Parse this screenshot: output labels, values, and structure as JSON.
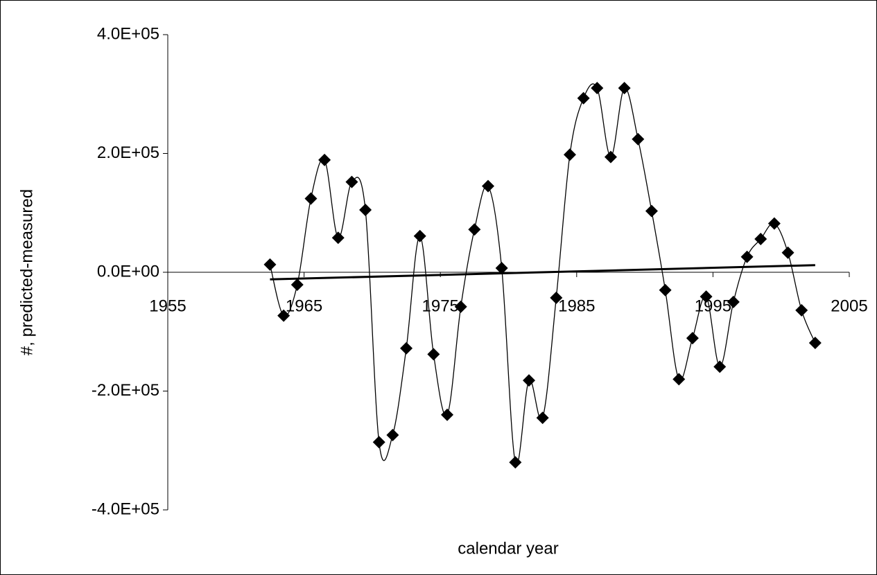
{
  "chart_data": {
    "type": "scatter-smooth",
    "x_label": "calendar year",
    "y_label": "#, predicted-measured",
    "x": [
      1962.5,
      1963.5,
      1964.5,
      1965.5,
      1966.5,
      1967.5,
      1968.5,
      1969.5,
      1970.5,
      1971.5,
      1972.5,
      1973.5,
      1974.5,
      1975.5,
      1976.5,
      1977.5,
      1978.5,
      1979.5,
      1980.5,
      1981.5,
      1982.5,
      1983.5,
      1984.5,
      1985.5,
      1986.5,
      1987.5,
      1988.5,
      1989.5,
      1990.5,
      1991.5,
      1992.5,
      1993.5,
      1994.5,
      1995.5,
      1996.5,
      1997.5,
      1998.5,
      1999.5,
      2000.5,
      2001.5,
      2002.5
    ],
    "values": [
      13000,
      -73000,
      -21000,
      124000,
      189000,
      58000,
      152000,
      105000,
      -286000,
      -274000,
      -128000,
      61000,
      -138000,
      -240000,
      -58000,
      72000,
      145000,
      7000,
      -320000,
      -182000,
      -245000,
      -43000,
      198000,
      293000,
      310000,
      194000,
      310000,
      224000,
      103000,
      -30000,
      -180000,
      -111000,
      -41000,
      -159000,
      -50000,
      26000,
      56000,
      82000,
      33000,
      -64000,
      -119000
    ],
    "color": "#000000",
    "trendline": {
      "x": [
        1962.5,
        2002.5
      ],
      "values": [
        -12000,
        12000
      ]
    },
    "xlim": [
      1955,
      2005
    ],
    "xticks": [
      1955,
      1965,
      1975,
      1985,
      1995,
      2005
    ],
    "ylim": [
      -400000,
      400000
    ],
    "yticks": [
      {
        "value": -400000,
        "label": "-4.0E+05"
      },
      {
        "value": -200000,
        "label": "-2.0E+05"
      },
      {
        "value": 0,
        "label": "0.0E+00"
      },
      {
        "value": 200000,
        "label": "2.0E+05"
      },
      {
        "value": 400000,
        "label": "4.0E+05"
      }
    ],
    "grid": false
  }
}
